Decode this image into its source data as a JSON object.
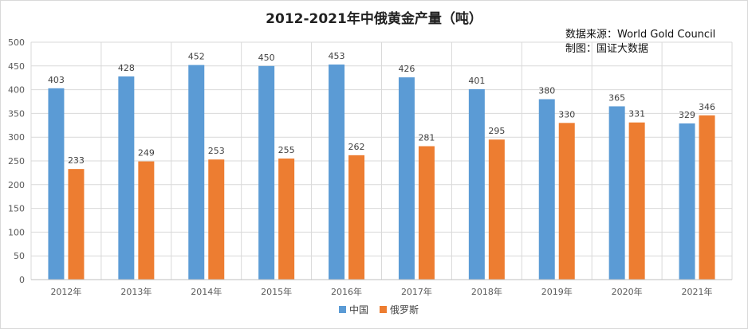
{
  "chart_data": {
    "type": "bar",
    "title": "2012-2021年中俄黄金产量（吨）",
    "source_lines": [
      "数据来源：World Gold Council",
      "制图：国证大数据"
    ],
    "categories": [
      "2012年",
      "2013年",
      "2014年",
      "2015年",
      "2016年",
      "2017年",
      "2018年",
      "2019年",
      "2020年",
      "2021年"
    ],
    "series": [
      {
        "name": "中国",
        "color": "#5b9bd5",
        "values": [
          403,
          428,
          452,
          450,
          453,
          426,
          401,
          380,
          365,
          329
        ]
      },
      {
        "name": "俄罗斯",
        "color": "#ed7d31",
        "values": [
          233,
          249,
          253,
          255,
          262,
          281,
          295,
          330,
          331,
          346
        ]
      }
    ],
    "ylim": [
      0,
      500
    ],
    "yticks": [
      0,
      50,
      100,
      150,
      200,
      250,
      300,
      350,
      400,
      450,
      500
    ],
    "grid": true,
    "legend_position": "bottom"
  }
}
